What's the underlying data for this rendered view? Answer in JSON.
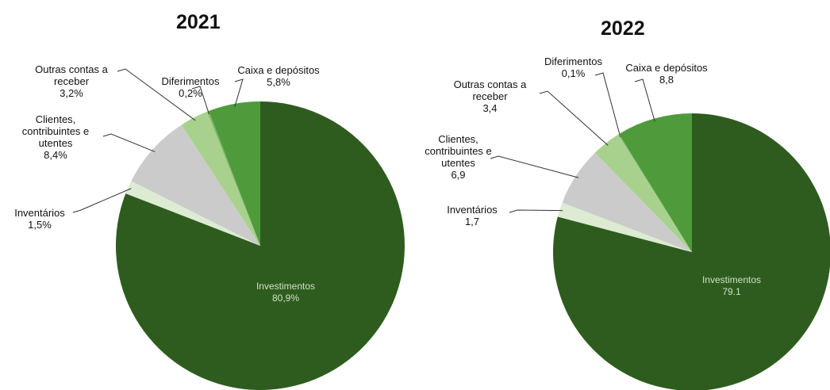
{
  "chart_data": [
    {
      "type": "pie",
      "title": "2021",
      "categories": [
        "Investimentos",
        "Inventários",
        "Clientes, contribuintes e utentes",
        "Outras contas a receber",
        "Diferimentos",
        "Caixa e depósitos"
      ],
      "values": [
        80.9,
        1.5,
        8.4,
        3.2,
        0.2,
        5.8
      ],
      "value_labels": [
        "80,9%",
        "1,5%",
        "8,4%",
        "3,2%",
        "0,2%",
        "5,8%"
      ],
      "colors": [
        "#2e5c1e",
        "#dcebd2",
        "#cbcbcb",
        "#a9d18e",
        "#7eb864",
        "#4f9b3c"
      ]
    },
    {
      "type": "pie",
      "title": "2022",
      "categories": [
        "Investimentos",
        "Inventários",
        "Clientes, contribuintes e utentes",
        "Outras contas a receber",
        "Diferimentos",
        "Caixa e depósitos"
      ],
      "values": [
        79.1,
        1.7,
        6.9,
        3.4,
        0.1,
        8.8
      ],
      "value_labels": [
        "79.1",
        "1,7",
        "6,9",
        "3,4",
        "0,1%",
        "8,8"
      ],
      "colors": [
        "#2e5c1e",
        "#dcebd2",
        "#cbcbcb",
        "#a9d18e",
        "#7eb864",
        "#4f9b3c"
      ]
    }
  ]
}
